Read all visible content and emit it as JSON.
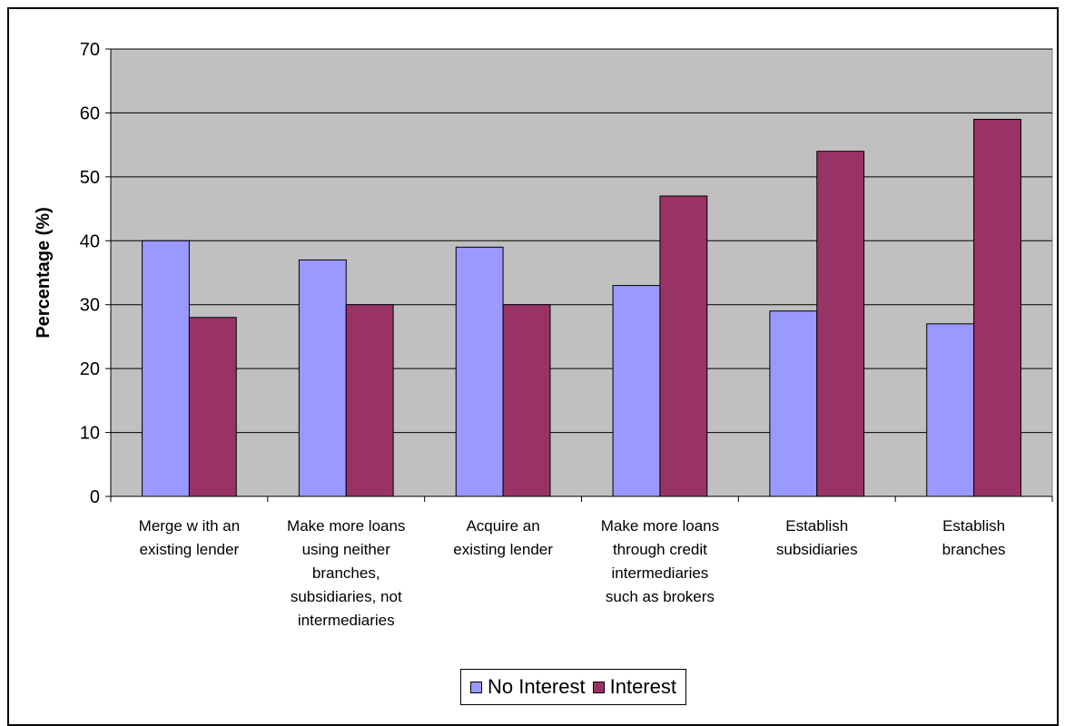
{
  "chart_data": {
    "type": "bar",
    "title": "",
    "xlabel": "",
    "ylabel": "Percentage (%)",
    "ylim": [
      0,
      70
    ],
    "yticks": [
      0,
      10,
      20,
      30,
      40,
      50,
      60,
      70
    ],
    "grid": true,
    "legend_position": "bottom",
    "plot_background": "#c0c0c0",
    "categories": [
      [
        "Merge w ith an",
        "existing lender"
      ],
      [
        "Make more loans",
        "using neither",
        "branches,",
        "subsidiaries, not",
        "intermediaries"
      ],
      [
        "Acquire an",
        "existing lender"
      ],
      [
        "Make more loans",
        "through credit",
        "intermediaries",
        "such as brokers"
      ],
      [
        "Establish",
        "subsidiaries"
      ],
      [
        "Establish",
        "branches"
      ]
    ],
    "series": [
      {
        "name": "No Interest",
        "color": "#9999ff",
        "values": [
          40,
          37,
          39,
          33,
          29,
          27
        ]
      },
      {
        "name": "Interest",
        "color": "#993366",
        "values": [
          28,
          30,
          30,
          47,
          54,
          59
        ]
      }
    ]
  }
}
